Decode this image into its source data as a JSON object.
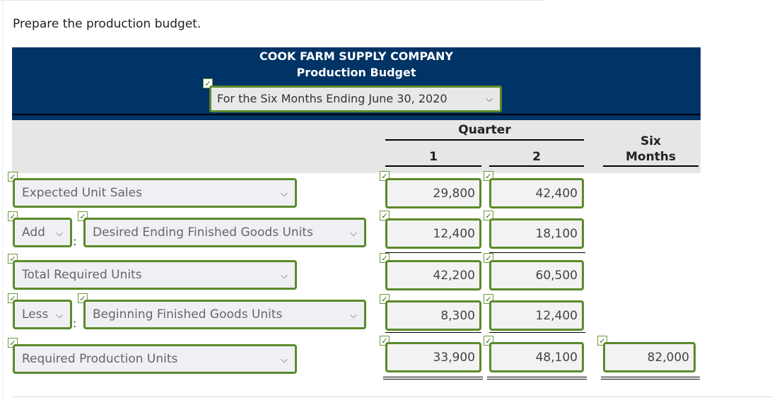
{
  "instruction": "Prepare the production budget.",
  "header": {
    "company": "COOK FARM SUPPLY COMPANY",
    "title": "Production Budget",
    "period": "For the Six Months Ending June 30, 2020"
  },
  "columns": {
    "quarter": "Quarter",
    "q1": "1",
    "q2": "2",
    "six_months_line1": "Six",
    "six_months_line2": "Months"
  },
  "rows": {
    "expected_sales": {
      "label": "Expected Unit Sales",
      "q1": "29,800",
      "q2": "42,400"
    },
    "desired_ending": {
      "operator": "Add",
      "label": "Desired Ending Finished Goods Units",
      "q1": "12,400",
      "q2": "18,100"
    },
    "total_required": {
      "label": "Total Required Units",
      "q1": "42,200",
      "q2": "60,500"
    },
    "beginning": {
      "operator": "Less",
      "label": "Beginning Finished Goods Units",
      "q1": "8,300",
      "q2": "12,400"
    },
    "required_production": {
      "label": "Required Production Units",
      "q1": "33,900",
      "q2": "48,100",
      "six": "82,000"
    }
  },
  "glyphs": {
    "check": "✓",
    "chevron": "⌵",
    "colon": ":"
  },
  "colors": {
    "header_bg": "#003366",
    "correct_border": "#5a8a2a",
    "column_header_bg": "#e6e6e6"
  }
}
